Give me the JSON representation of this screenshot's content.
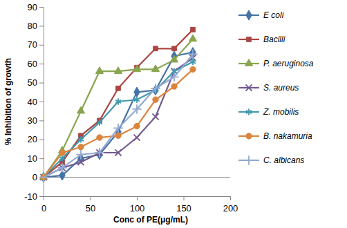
{
  "chart_data": {
    "type": "line",
    "x_label": "Conc of PE(μg/mL)",
    "y_label": "% Inhibition of growth",
    "x": [
      0,
      20,
      40,
      60,
      80,
      100,
      120,
      140,
      160
    ],
    "series": [
      {
        "name": "E coli",
        "color": "#4572a7",
        "marker": "diamond",
        "values": [
          0,
          1,
          10,
          12,
          24,
          45,
          46,
          64,
          66
        ]
      },
      {
        "name": "Bacilli",
        "color": "#aa4643",
        "marker": "square",
        "values": [
          0,
          8,
          22,
          30,
          47,
          58,
          68,
          68,
          78
        ]
      },
      {
        "name": "P. aeruginosa",
        "color": "#89a54e",
        "marker": "triangle",
        "values": [
          0,
          14,
          35,
          56,
          56,
          57,
          57,
          62,
          73
        ]
      },
      {
        "name": "S. aureus",
        "color": "#71588f",
        "marker": "x",
        "values": [
          0,
          5,
          8,
          13,
          13,
          21,
          32,
          56,
          63
        ]
      },
      {
        "name": "Z. mobilis",
        "color": "#4198af",
        "marker": "asterisk",
        "values": [
          0,
          10,
          20,
          29,
          40,
          41,
          46,
          56,
          61
        ]
      },
      {
        "name": "B. nakamuria",
        "color": "#db843d",
        "marker": "circle",
        "values": [
          0,
          13,
          16,
          21,
          22,
          27,
          41,
          48,
          57
        ]
      },
      {
        "name": "C. albicans",
        "color": "#93a9cf",
        "marker": "plus",
        "values": [
          0,
          5,
          12,
          13,
          26,
          36,
          47,
          53,
          65
        ]
      }
    ],
    "xlim": [
      0,
      200
    ],
    "xticks": [
      0,
      50,
      100,
      150,
      200
    ],
    "ylim": [
      -10,
      90
    ],
    "yticks": [
      -10,
      0,
      10,
      20,
      30,
      40,
      50,
      60,
      70,
      80,
      90
    ],
    "grid": false,
    "legend": "right"
  }
}
